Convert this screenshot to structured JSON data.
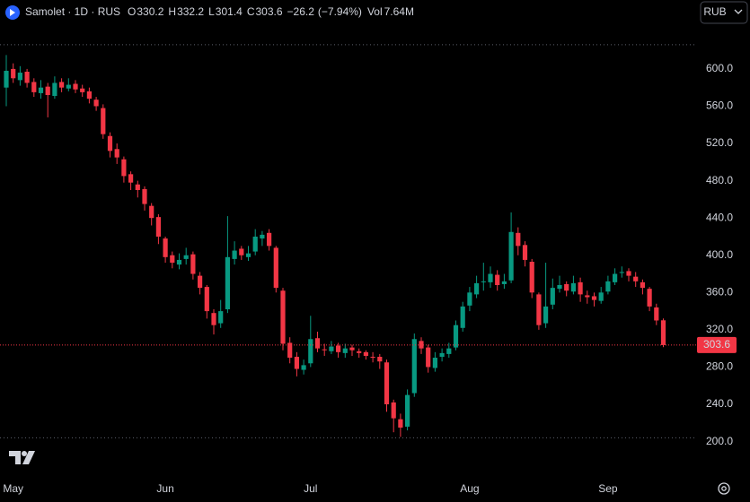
{
  "header": {
    "title": "Samolet · 1D · RUS",
    "items": [
      {
        "label": "O",
        "value": 330.2
      },
      {
        "label": "H",
        "value": 332.2
      },
      {
        "label": "L",
        "value": 301.4
      },
      {
        "label": "C",
        "value": 303.6
      }
    ],
    "change": {
      "value": -26.2,
      "label": "−26.2"
    },
    "change_pct": {
      "value": -7.94,
      "label": "(−7.94%)"
    },
    "volume_label": "Vol",
    "volume": {
      "value": 7640000,
      "label": "7.64M"
    },
    "currency": "RUB"
  },
  "chart_data": {
    "type": "candlestick",
    "up_color": "#089981",
    "down_color": "#f23645",
    "open": [
      580,
      600,
      588,
      597,
      586,
      574,
      581,
      571,
      586,
      579,
      584,
      579,
      576,
      567,
      558,
      528,
      514,
      503,
      487,
      476,
      471,
      453,
      441,
      418,
      400,
      390,
      396,
      401,
      378,
      366,
      338,
      327,
      342,
      396,
      407,
      398,
      404,
      418,
      424,
      408,
      362,
      306,
      291,
      277,
      284,
      311,
      299,
      297,
      303,
      295,
      301,
      297,
      296,
      291,
      291,
      285,
      242,
      224,
      216,
      252,
      308,
      301,
      279,
      291,
      294,
      301,
      322,
      346,
      358,
      371,
      371,
      379,
      369,
      373,
      424,
      411,
      393,
      358,
      327,
      347,
      364,
      369,
      361,
      371,
      357,
      356,
      351,
      361,
      371,
      381,
      383,
      377,
      371,
      364,
      344,
      330.2
    ],
    "high": [
      615,
      606,
      603,
      600,
      590,
      588,
      585,
      592,
      590,
      590,
      588,
      583,
      580,
      570,
      562,
      532,
      520,
      506,
      490,
      480,
      474,
      456,
      444,
      420,
      404,
      402,
      408,
      404,
      382,
      368,
      342,
      352,
      442,
      415,
      410,
      410,
      428,
      426,
      428,
      410,
      365,
      312,
      296,
      288,
      335,
      318,
      305,
      308,
      306,
      305,
      304,
      300,
      298,
      296,
      294,
      288,
      245,
      230,
      256,
      316,
      312,
      304,
      296,
      300,
      306,
      330,
      350,
      366,
      378,
      392,
      388,
      384,
      380,
      446,
      430,
      415,
      396,
      360,
      392,
      375,
      378,
      372,
      378,
      376,
      362,
      360,
      366,
      378,
      386,
      388,
      386,
      382,
      374,
      366,
      348,
      332.2
    ],
    "low": [
      560,
      585,
      582,
      580,
      570,
      568,
      548,
      568,
      575,
      576,
      574,
      570,
      563,
      555,
      525,
      505,
      498,
      478,
      470,
      462,
      448,
      432,
      412,
      392,
      386,
      385,
      390,
      374,
      358,
      332,
      315,
      322,
      338,
      390,
      395,
      394,
      400,
      410,
      405,
      360,
      298,
      284,
      270,
      272,
      280,
      296,
      292,
      294,
      290,
      290,
      292,
      290,
      288,
      285,
      278,
      232,
      210,
      205,
      212,
      248,
      294,
      274,
      275,
      286,
      290,
      298,
      318,
      340,
      354,
      362,
      365,
      362,
      364,
      370,
      400,
      388,
      354,
      320,
      322,
      342,
      360,
      356,
      358,
      350,
      348,
      345,
      348,
      358,
      368,
      376,
      372,
      366,
      358,
      340,
      325,
      301.4
    ],
    "close": [
      598,
      590,
      596,
      585,
      575,
      580,
      572,
      585,
      580,
      583,
      578,
      575,
      568,
      560,
      530,
      512,
      505,
      485,
      478,
      470,
      455,
      440,
      420,
      398,
      392,
      395,
      400,
      380,
      365,
      340,
      325,
      340,
      398,
      405,
      400,
      402,
      420,
      422,
      410,
      365,
      305,
      290,
      278,
      282,
      310,
      300,
      298,
      302,
      296,
      300,
      298,
      295,
      292,
      290,
      286,
      240,
      225,
      215,
      250,
      310,
      300,
      280,
      290,
      295,
      300,
      325,
      345,
      360,
      370,
      372,
      380,
      368,
      372,
      425,
      410,
      395,
      360,
      325,
      345,
      365,
      368,
      362,
      370,
      358,
      355,
      352,
      360,
      372,
      380,
      382,
      378,
      372,
      365,
      345,
      330,
      303.6
    ],
    "ylim": [
      164,
      674
    ],
    "yticks": [
      {
        "value": 200,
        "label": "200.0"
      },
      {
        "value": 240,
        "label": "240.0"
      },
      {
        "value": 280,
        "label": "280.0"
      },
      {
        "value": 320,
        "label": "320.0"
      },
      {
        "value": 360,
        "label": "360.0"
      },
      {
        "value": 400,
        "label": "400.0"
      },
      {
        "value": 440,
        "label": "440.0"
      },
      {
        "value": 480,
        "label": "480.0"
      },
      {
        "value": 520,
        "label": "520.0"
      },
      {
        "value": 560,
        "label": "560.0"
      },
      {
        "value": 600,
        "label": "600.0"
      }
    ],
    "xticks": [
      {
        "value": 1,
        "label": "May"
      },
      {
        "value": 23,
        "label": "Jun"
      },
      {
        "value": 44,
        "label": "Jul"
      },
      {
        "value": 67,
        "label": "Aug"
      },
      {
        "value": 87,
        "label": "Sep"
      }
    ],
    "last_price": {
      "value": 303.6,
      "label": "303.6"
    },
    "hlines": [
      626,
      204
    ]
  }
}
